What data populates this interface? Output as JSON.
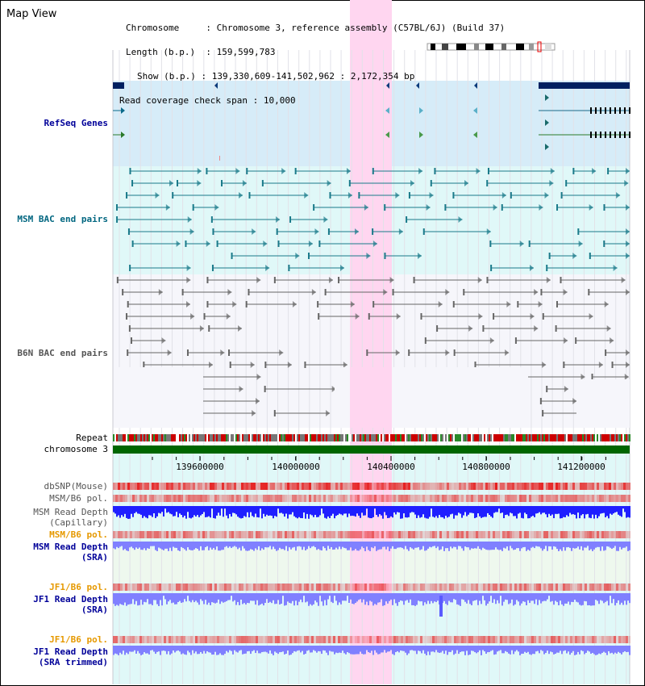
{
  "title": "Map View",
  "info": {
    "chromosome_label": "Chromosome",
    "chromosome_value": "Chromosome 3, reference assembly (C57BL/6J) (Build 37)",
    "length_label": "Length (b.p.)",
    "length_value": "159,599,783",
    "show_label": "Show (b.p.)",
    "show_value": "139,330,609-141,502,962 : 2,172,354 bp",
    "coverage_label": "Read coverage check span",
    "coverage_value": "10,000"
  },
  "tracks": {
    "refseq": "RefSeq Genes",
    "msm_bac": "MSM BAC end pairs",
    "b6n_bac": "B6N BAC end pairs",
    "repeat": "Repeat",
    "chromosome": "chromosome 3",
    "dbsnp": "dbSNP(Mouse)",
    "msm_b6_pol": "MSM/B6 pol.",
    "msm_depth_cap_1": "MSM Read Depth",
    "msm_depth_cap_2": "(Capillary)",
    "msm_b6_pol_sra": "MSM/B6 pol.",
    "msm_depth_sra_1": "MSM Read Depth",
    "msm_depth_sra_2": "(SRA)",
    "jf1_b6_pol": "JF1/B6 pol.",
    "jf1_depth_1": "JF1 Read Depth",
    "jf1_depth_2": "(SRA)",
    "jf1_b6_pol_trim": "JF1/B6 pol.",
    "jf1_depth_trim_1": "JF1 Read Depth",
    "jf1_depth_trim_2": "(SRA trimmed)"
  },
  "axis_ticks": [
    "139600000",
    "140000000",
    "140400000",
    "140800000",
    "141200000"
  ],
  "colors": {
    "label_blue": "#000099",
    "label_teal": "#006680",
    "label_gray": "#555555",
    "label_orange": "#e69900",
    "highlight": "#ffd6f0",
    "refseq_bg": "#d6ecf8",
    "msm_bg": "#e0f8f8",
    "chrom_green": "#006600",
    "depth_blue": "#1f1fff",
    "depth_light": "#8080ff"
  }
}
